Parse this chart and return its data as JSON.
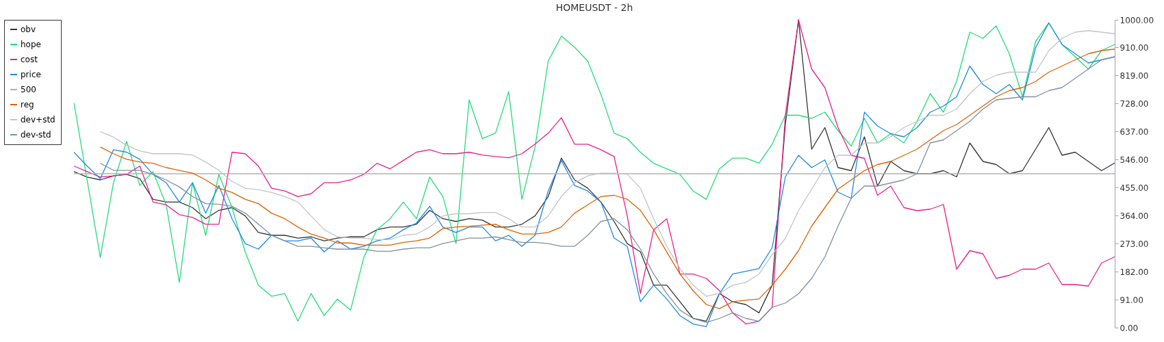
{
  "chart_data": {
    "type": "line",
    "title": "HOMEUSDT - 2h",
    "categories": [
      null,
      null,
      null,
      null,
      null,
      null,
      null,
      null,
      null,
      null,
      null,
      null,
      null,
      null,
      null,
      null,
      null,
      null,
      null,
      null,
      null,
      null,
      null,
      null,
      null,
      null,
      null,
      null,
      null,
      null,
      null,
      null,
      null,
      null,
      null,
      null,
      null,
      null,
      null,
      null,
      null,
      null,
      null,
      null,
      null,
      null,
      null,
      null,
      null,
      null,
      null,
      null,
      null,
      null,
      null,
      null,
      null,
      null,
      null,
      null,
      null,
      null,
      null,
      null,
      null,
      null,
      null,
      null,
      null,
      null,
      null,
      null,
      null,
      null,
      null,
      null,
      null,
      null,
      null,
      null
    ],
    "series": [
      {
        "name": "obv",
        "color": "#333333",
        "values": [
          507,
          489,
          480,
          493,
          498,
          484,
          417,
          408,
          408,
          390,
          354,
          381,
          390,
          363,
          309,
          300,
          300,
          291,
          295,
          282,
          291,
          295,
          295,
          318,
          327,
          327,
          336,
          381,
          354,
          345,
          354,
          349,
          327,
          327,
          336,
          363,
          426,
          551,
          480,
          453,
          408,
          345,
          273,
          246,
          138,
          138,
          84,
          30,
          21,
          111,
          84,
          75,
          48,
          138,
          660,
          1000,
          580,
          650,
          520,
          510,
          620,
          460,
          540,
          510,
          500,
          500,
          510,
          490,
          600,
          540,
          530,
          500,
          510,
          580,
          650,
          560,
          570,
          540,
          510,
          535
        ]
      },
      {
        "name": "hope",
        "color": "#22dd77",
        "values": [
          730,
          480,
          228,
          471,
          605,
          462,
          507,
          399,
          147,
          471,
          300,
          498,
          390,
          246,
          138,
          102,
          111,
          21,
          111,
          39,
          93,
          57,
          228,
          318,
          354,
          408,
          354,
          489,
          426,
          273,
          740,
          614,
          632,
          767,
          417,
          587,
          866,
          947,
          911,
          866,
          758,
          632,
          614,
          570,
          534,
          516,
          498,
          444,
          417,
          516,
          551,
          551,
          534,
          596,
          690,
          690,
          680,
          700,
          640,
          590,
          680,
          600,
          630,
          600,
          670,
          760,
          700,
          800,
          960,
          940,
          980,
          890,
          750,
          930,
          990,
          920,
          880,
          840,
          900,
          920
        ]
      },
      {
        "name": "cost",
        "color": "#e91e8c",
        "values": [
          525,
          507,
          489,
          493,
          498,
          525,
          408,
          399,
          367,
          358,
          336,
          336,
          570,
          565,
          525,
          453,
          444,
          426,
          435,
          471,
          471,
          480,
          498,
          534,
          516,
          543,
          570,
          578,
          565,
          565,
          570,
          561,
          556,
          552,
          565,
          596,
          632,
          682,
          596,
          596,
          578,
          556,
          363,
          111,
          318,
          354,
          174,
          174,
          160,
          120,
          48,
          12,
          21,
          66,
          690,
          1000,
          840,
          780,
          650,
          560,
          550,
          430,
          460,
          390,
          380,
          385,
          400,
          190,
          250,
          240,
          160,
          170,
          190,
          190,
          210,
          140,
          140,
          135,
          210,
          230
        ]
      },
      {
        "name": "price",
        "color": "#1e88e5",
        "values": [
          570,
          525,
          484,
          578,
          570,
          547,
          498,
          471,
          408,
          471,
          372,
          462,
          354,
          273,
          255,
          300,
          282,
          282,
          291,
          246,
          282,
          255,
          264,
          282,
          291,
          318,
          340,
          394,
          327,
          309,
          327,
          327,
          282,
          300,
          264,
          300,
          444,
          543,
          462,
          444,
          408,
          291,
          264,
          84,
          138,
          93,
          39,
          12,
          3,
          111,
          174,
          183,
          192,
          260,
          490,
          560,
          520,
          545,
          440,
          420,
          700,
          655,
          630,
          620,
          650,
          700,
          720,
          750,
          850,
          790,
          760,
          790,
          740,
          910,
          990,
          920,
          890,
          860,
          870,
          880
        ]
      },
      {
        "name": "500",
        "color": "#b0b0b0",
        "values": [
          500,
          500,
          500,
          500,
          500,
          500,
          500,
          500,
          500,
          500,
          500,
          500,
          500,
          500,
          500,
          500,
          500,
          500,
          500,
          500,
          500,
          500,
          500,
          500,
          500,
          500,
          500,
          500,
          500,
          500,
          500,
          500,
          500,
          500,
          500,
          500,
          500,
          500,
          500,
          500,
          500,
          500,
          500,
          500,
          500,
          500,
          500,
          500,
          500,
          500,
          500,
          500,
          500,
          500,
          500,
          500,
          500,
          500,
          500,
          500,
          500,
          500,
          500,
          500,
          500,
          500,
          500,
          500,
          500,
          500,
          500,
          500,
          500,
          500,
          500,
          500,
          500,
          500,
          500,
          500
        ]
      },
      {
        "name": "reg",
        "color": "#e06000",
        "values": [
          null,
          null,
          587,
          565,
          547,
          538,
          534,
          520,
          511,
          502,
          480,
          453,
          439,
          417,
          403,
          372,
          354,
          327,
          304,
          291,
          275,
          275,
          268,
          268,
          268,
          277,
          282,
          291,
          322,
          327,
          329,
          333,
          336,
          318,
          304,
          304,
          309,
          327,
          372,
          399,
          426,
          430,
          417,
          381,
          318,
          246,
          174,
          120,
          75,
          62,
          84,
          89,
          93,
          138,
          190,
          250,
          330,
          390,
          450,
          480,
          510,
          530,
          540,
          560,
          580,
          610,
          640,
          660,
          690,
          720,
          750,
          770,
          780,
          800,
          830,
          850,
          870,
          890,
          900,
          905
        ]
      },
      {
        "name": "dev+std",
        "color": "#c0c4c8",
        "values": [
          null,
          null,
          637,
          619,
          592,
          574,
          565,
          565,
          565,
          561,
          538,
          511,
          475,
          453,
          448,
          439,
          426,
          408,
          363,
          318,
          295,
          291,
          291,
          286,
          286,
          300,
          304,
          327,
          363,
          370,
          370,
          374,
          374,
          354,
          327,
          327,
          363,
          426,
          471,
          493,
          502,
          502,
          498,
          453,
          354,
          264,
          192,
          138,
          102,
          111,
          138,
          147,
          174,
          237,
          290,
          380,
          450,
          520,
          560,
          560,
          600,
          600,
          620,
          650,
          670,
          690,
          690,
          710,
          760,
          800,
          820,
          830,
          830,
          830,
          900,
          940,
          960,
          965,
          960,
          955
        ]
      },
      {
        "name": "dev-std",
        "color": "#8090a0",
        "values": [
          null,
          null,
          534,
          511,
          511,
          511,
          498,
          480,
          457,
          426,
          403,
          401,
          394,
          372,
          336,
          300,
          282,
          264,
          264,
          259,
          255,
          255,
          255,
          248,
          248,
          255,
          259,
          259,
          273,
          282,
          291,
          291,
          295,
          286,
          277,
          277,
          273,
          264,
          264,
          300,
          345,
          354,
          318,
          255,
          174,
          111,
          57,
          30,
          17,
          30,
          48,
          30,
          21,
          66,
          80,
          110,
          160,
          230,
          330,
          420,
          460,
          460,
          470,
          480,
          500,
          600,
          610,
          640,
          670,
          710,
          740,
          745,
          750,
          750,
          770,
          780,
          810,
          840,
          870,
          880
        ]
      }
    ],
    "ylim": [
      0,
      1000
    ],
    "yticks": [
      {
        "value": 0,
        "label": "0.00"
      },
      {
        "value": 91,
        "label": "91.00"
      },
      {
        "value": 182,
        "label": "182.00"
      },
      {
        "value": 273,
        "label": "273.00"
      },
      {
        "value": 364,
        "label": "364.00"
      },
      {
        "value": 455,
        "label": "455.00"
      },
      {
        "value": 546,
        "label": "546.00"
      },
      {
        "value": 637,
        "label": "637.00"
      },
      {
        "value": 728,
        "label": "728.00"
      },
      {
        "value": 819,
        "label": "819.00"
      },
      {
        "value": 910,
        "label": "910.00"
      },
      {
        "value": 1000,
        "label": "1000.00"
      }
    ],
    "tick_labels": "y",
    "grid": false,
    "legend": "top left",
    "marker": "none",
    "line_style": "solid"
  }
}
